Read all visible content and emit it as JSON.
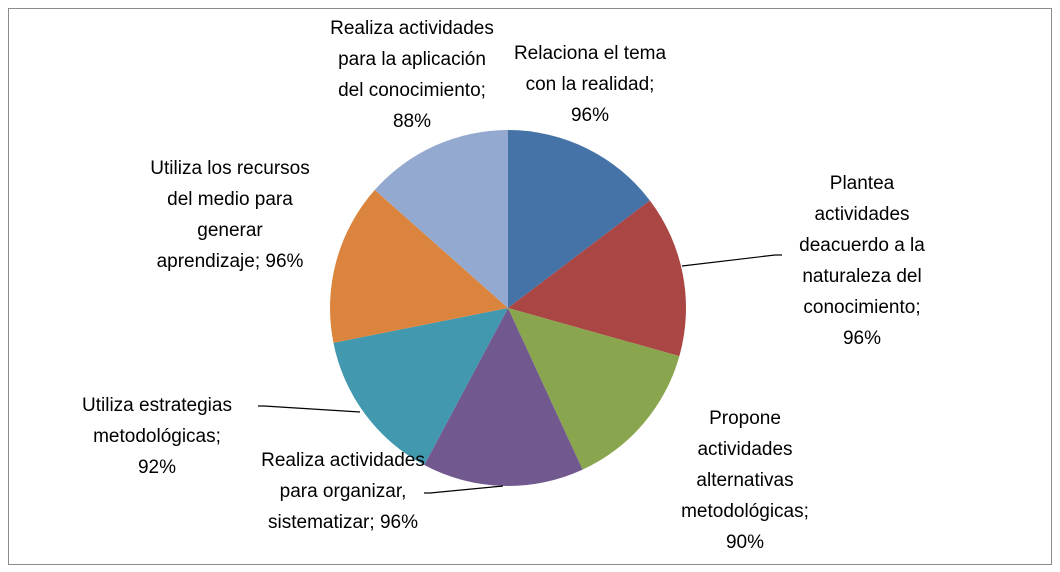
{
  "chart_data": {
    "type": "pie",
    "categories": [
      "Relaciona el tema con la realidad;",
      "Plantea actividades deacuerdo a la naturaleza del conocimiento;",
      "Propone actividades alternativas metodológicas;",
      "Realiza actividades para organizar, sistematizar;",
      "Utiliza estrategias metodológicas;",
      "Utiliza los recursos del medio para generar aprendizaje;",
      "Realiza actividades para la aplicación del conocimiento;"
    ],
    "values": [
      96,
      96,
      90,
      96,
      92,
      96,
      88
    ],
    "value_labels": [
      "96%",
      "96%",
      "90%",
      "96%",
      "92%",
      "96%",
      "88%"
    ],
    "colors": [
      "#4572a7",
      "#aa4643",
      "#89a54e",
      "#71588f",
      "#4198af",
      "#db843d",
      "#93a9cf"
    ]
  }
}
